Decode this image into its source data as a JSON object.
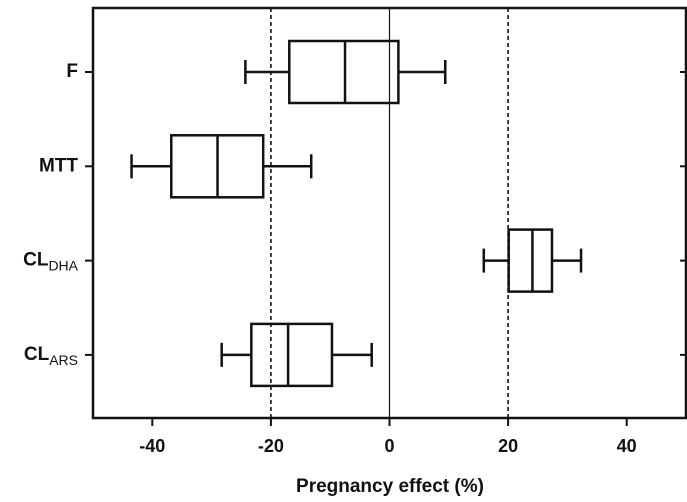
{
  "chart_data": {
    "type": "boxplot",
    "orientation": "horizontal",
    "categories": [
      "F",
      "MTT",
      "CL",
      "CL"
    ],
    "category_subscripts": [
      null,
      null,
      "DHA",
      "ARS"
    ],
    "boxes": [
      {
        "whislo": -24.3,
        "q1": -16.9,
        "med": -7.5,
        "q3": 1.5,
        "whishi": 9.4
      },
      {
        "whislo": -43.5,
        "q1": -36.8,
        "med": -29.0,
        "q3": -21.3,
        "whishi": -13.2
      },
      {
        "whislo": 15.9,
        "q1": 20.1,
        "med": 24.1,
        "q3": 27.4,
        "whishi": 32.3
      },
      {
        "whislo": -28.3,
        "q1": -23.3,
        "med": -17.1,
        "q3": -9.7,
        "whishi": -3.0
      }
    ],
    "xlabel": "Pregnancy effect (%)",
    "xlim": [
      -50,
      50
    ],
    "xticks": [
      -40,
      -20,
      0,
      20,
      40
    ],
    "reference_lines": [
      {
        "value": -20,
        "style": "dashed"
      },
      {
        "value": 0,
        "style": "solid"
      },
      {
        "value": 20,
        "style": "dashed"
      }
    ],
    "color": "#111111"
  }
}
